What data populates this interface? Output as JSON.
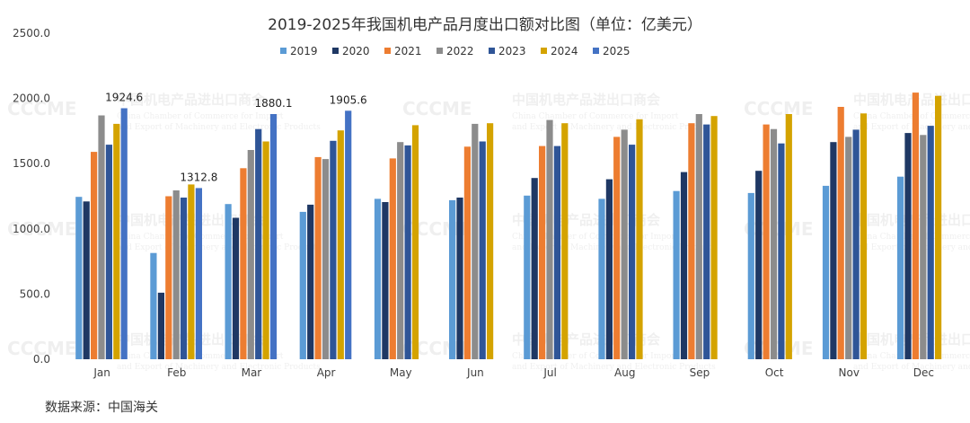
{
  "chart_data": {
    "type": "bar",
    "title": "2019-2025年我国机电产品月度出口额对比图（单位：亿美元）",
    "categories": [
      "Jan",
      "Feb",
      "Mar",
      "Apr",
      "May",
      "Jun",
      "Jul",
      "Aug",
      "Sep",
      "Oct",
      "Nov",
      "Dec"
    ],
    "series": [
      {
        "name": "2019",
        "color": "#5b9bd5",
        "values": [
          1245,
          815,
          1190,
          1130,
          1230,
          1220,
          1255,
          1230,
          1290,
          1275,
          1330,
          1400
        ]
      },
      {
        "name": "2020",
        "color": "#1f3864",
        "values": [
          1210,
          510,
          1085,
          1185,
          1205,
          1240,
          1390,
          1380,
          1435,
          1445,
          1665,
          1735
        ]
      },
      {
        "name": "2021",
        "color": "#ed7d31",
        "values": [
          1590,
          1250,
          1465,
          1550,
          1540,
          1630,
          1635,
          1705,
          1810,
          1800,
          1935,
          2045
        ]
      },
      {
        "name": "2022",
        "color": "#8c8c8c",
        "values": [
          1870,
          1295,
          1605,
          1535,
          1665,
          1805,
          1835,
          1760,
          1880,
          1765,
          1705,
          1720
        ]
      },
      {
        "name": "2023",
        "color": "#2f5597",
        "values": [
          1645,
          1240,
          1765,
          1675,
          1640,
          1670,
          1635,
          1645,
          1800,
          1655,
          1760,
          1790
        ]
      },
      {
        "name": "2024",
        "color": "#d4a300",
        "values": [
          1805,
          1340,
          1670,
          1755,
          1795,
          1810,
          1810,
          1840,
          1865,
          1880,
          1885,
          2020
        ]
      },
      {
        "name": "2025",
        "color": "#4472c4",
        "values": [
          1924.6,
          1312.8,
          1880.1,
          1905.6,
          null,
          null,
          null,
          null,
          null,
          null,
          null,
          null
        ]
      }
    ],
    "data_labels": [
      {
        "category": "Jan",
        "series": "2025",
        "text": "1924.6"
      },
      {
        "category": "Feb",
        "series": "2025",
        "text": "1312.8"
      },
      {
        "category": "Mar",
        "series": "2025",
        "text": "1880.1"
      },
      {
        "category": "Apr",
        "series": "2025",
        "text": "1905.6"
      }
    ],
    "yticks": [
      "0.0",
      "500.0",
      "1000.0",
      "1500.0",
      "2000.0",
      "2500.0"
    ],
    "ylim": [
      0,
      2500
    ],
    "legend_position": "top",
    "grid": false
  },
  "watermark": {
    "logo_text": "CCCME",
    "cn": "中国机电产品进出口商会",
    "en1": "China Chamber of Commerce for Import",
    "en2": "and Export of Machinery and Electronic Products"
  },
  "source": "数据来源：中国海关"
}
